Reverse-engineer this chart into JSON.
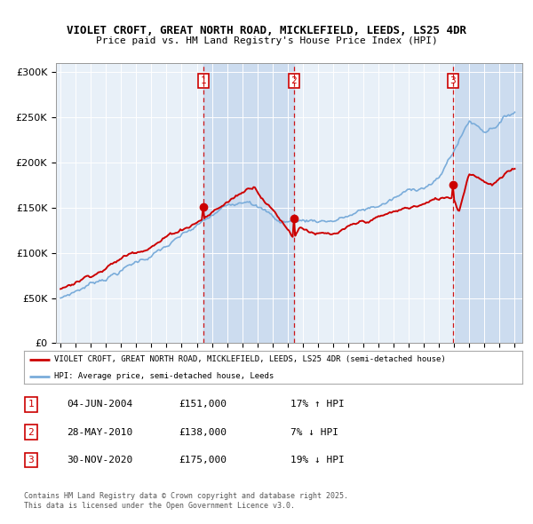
{
  "title1": "VIOLET CROFT, GREAT NORTH ROAD, MICKLEFIELD, LEEDS, LS25 4DR",
  "title2": "Price paid vs. HM Land Registry's House Price Index (HPI)",
  "legend_line1": "VIOLET CROFT, GREAT NORTH ROAD, MICKLEFIELD, LEEDS, LS25 4DR (semi-detached house)",
  "legend_line2": "HPI: Average price, semi-detached house, Leeds",
  "sale1": {
    "label": "1",
    "date": 2004.42,
    "price": 151000,
    "text": "04-JUN-2004",
    "amount": "£151,000",
    "pct": "17% ↑ HPI"
  },
  "sale2": {
    "label": "2",
    "date": 2010.41,
    "price": 138000,
    "text": "28-MAY-2010",
    "amount": "£138,000",
    "pct": "7% ↓ HPI"
  },
  "sale3": {
    "label": "3",
    "date": 2020.92,
    "price": 175000,
    "text": "30-NOV-2020",
    "amount": "£175,000",
    "pct": "19% ↓ HPI"
  },
  "footer1": "Contains HM Land Registry data © Crown copyright and database right 2025.",
  "footer2": "This data is licensed under the Open Government Licence v3.0.",
  "bg_color": "#e8f0f8",
  "plot_bg": "#e8f0f8",
  "shade_color": "#ccdcef",
  "red_color": "#cc0000",
  "blue_color": "#7aacda",
  "ylim": [
    0,
    310000
  ],
  "yticks": [
    0,
    50000,
    100000,
    150000,
    200000,
    250000,
    300000
  ],
  "xmin": 1994.7,
  "xmax": 2025.5
}
